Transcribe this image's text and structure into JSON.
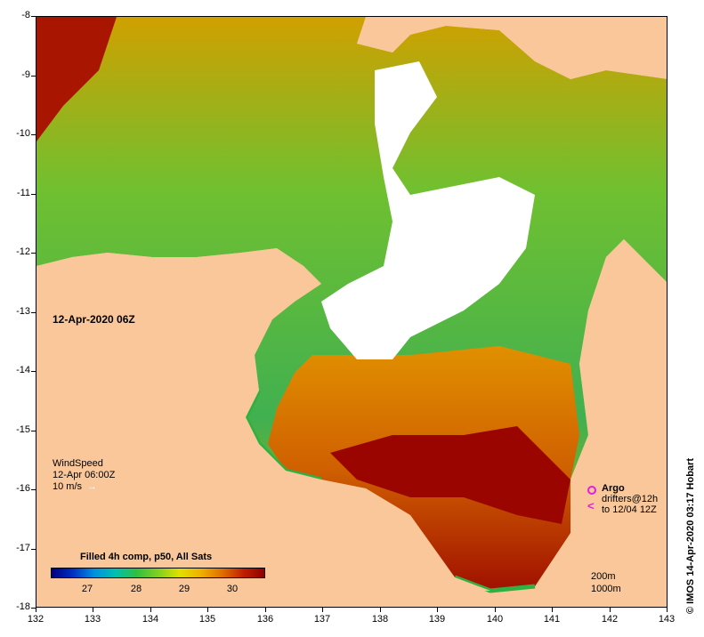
{
  "map": {
    "timestamp": "12-Apr-2020 06Z",
    "x_ticks": [
      "132",
      "133",
      "134",
      "135",
      "136",
      "137",
      "138",
      "139",
      "140",
      "141",
      "142",
      "143"
    ],
    "y_ticks": [
      "-8",
      "-9",
      "-10",
      "-11",
      "-12",
      "-13",
      "-14",
      "-15",
      "-16",
      "-17",
      "-18"
    ],
    "land_color": "#f9c79a",
    "cloud_color": "#ffffff"
  },
  "wind": {
    "title": "WindSpeed",
    "time": "12-Apr 06:00Z",
    "scale": "10 m/s"
  },
  "argo": {
    "title": "Argo",
    "line1": "drifters@12h",
    "line2": "to 12/04 12Z",
    "marker_color": "#e020e0"
  },
  "colorbar": {
    "title": "Filled 4h comp, p50, All Sats",
    "ticks": [
      "27",
      "28",
      "29",
      "30"
    ],
    "colors": [
      "#000080",
      "#0090e0",
      "#30c040",
      "#e0e000",
      "#e07000",
      "#900000"
    ]
  },
  "scale": {
    "line1": "200m",
    "line2": "1000m"
  },
  "credit": "© IMOS 14-Apr-2020 03:17 Hobart"
}
